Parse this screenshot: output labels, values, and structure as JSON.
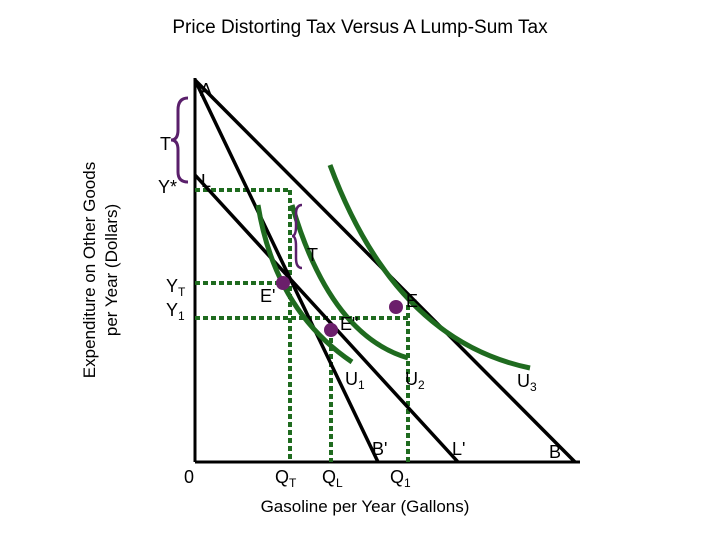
{
  "title": "Price Distorting Tax Versus A Lump-Sum Tax",
  "axes": {
    "x_label": "Gasoline per Year (Gallons)",
    "y_label_line1": "Expenditure on Other Goods",
    "y_label_line2": "per Year (Dollars)",
    "origin": "0"
  },
  "y_ticks": {
    "T": "T",
    "Y_star": "Y*",
    "Y_T_main": "Y",
    "Y_T_sub": "T",
    "Y_1_main": "Y",
    "Y_1_sub": "1"
  },
  "x_ticks": {
    "Q_T_main": "Q",
    "Q_T_sub": "T",
    "Q_L_main": "Q",
    "Q_L_sub": "L",
    "Q_1_main": "Q",
    "Q_1_sub": "1"
  },
  "points": {
    "A": "A",
    "L": "L",
    "T_mid": "T",
    "E_prime": "E'",
    "E": "E",
    "E_double_prime": "E\"",
    "B_prime": "B'",
    "L_prime": "L'",
    "B": "B"
  },
  "curves": {
    "U1_main": "U",
    "U1_sub": "1",
    "U2_main": "U",
    "U2_sub": "2",
    "U3_main": "U",
    "U3_sub": "3"
  },
  "colors": {
    "budget_line": "#000000",
    "indifference_curve": "#1f6b1f",
    "guide_line": "#1f6b1f",
    "point": "#6b1f6b",
    "bracket": "#5a1f6b"
  }
}
